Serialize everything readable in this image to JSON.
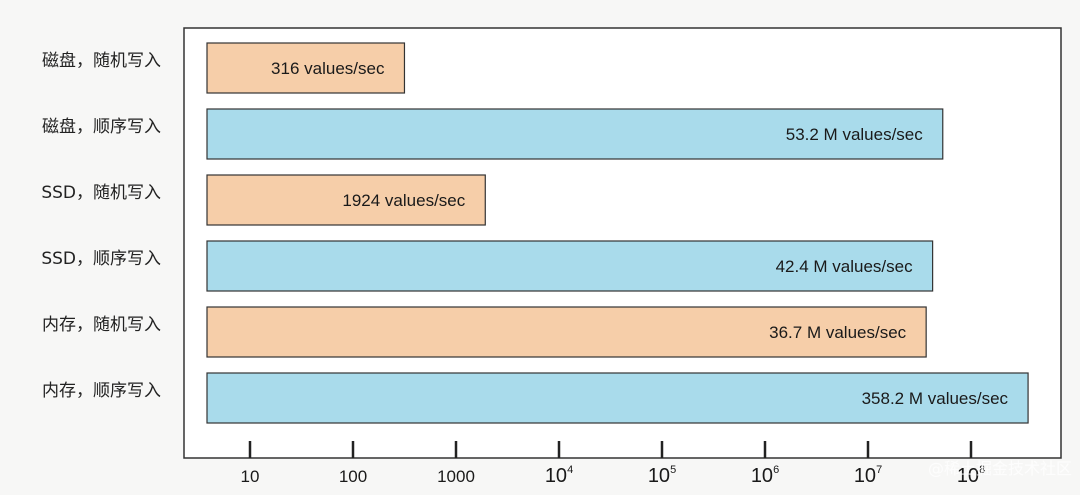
{
  "chart_data": {
    "type": "bar",
    "orientation": "horizontal",
    "x_scale": "log",
    "xlim": [
      3,
      2000000000
    ],
    "categories": [
      "磁盘，随机写入",
      "磁盘，顺序写入",
      "SSD，随机写入",
      "SSD，顺序写入",
      "内存，随机写入",
      "内存，顺序写入"
    ],
    "values": [
      316,
      53200000,
      1924,
      42400000,
      36700000,
      358200000
    ],
    "labels": [
      "316 values/sec",
      "53.2 M values/sec",
      "1924 values/sec",
      "42.4 M values/sec",
      "36.7 M values/sec",
      "358.2 M values/sec"
    ],
    "bar_colors": [
      "#f6cea9",
      "#a9dbeb",
      "#f6cea9",
      "#a9dbeb",
      "#f6cea9",
      "#a9dbeb"
    ],
    "ticks": [
      {
        "value": 10,
        "base": "10",
        "exp": ""
      },
      {
        "value": 100,
        "base": "100",
        "exp": ""
      },
      {
        "value": 1000,
        "base": "1000",
        "exp": ""
      },
      {
        "value": 10000,
        "base": "10",
        "exp": "4"
      },
      {
        "value": 100000,
        "base": "10",
        "exp": "5"
      },
      {
        "value": 1000000,
        "base": "10",
        "exp": "6"
      },
      {
        "value": 10000000,
        "base": "10",
        "exp": "7"
      },
      {
        "value": 100000000,
        "base": "10",
        "exp": "8"
      }
    ],
    "grid": false,
    "title": "",
    "xlabel": "",
    "ylabel": ""
  },
  "watermark": "@稀土掘金技术社区",
  "colors": {
    "background": "#f7f7f6",
    "plot": "#ffffff",
    "frame": "#333333",
    "bar_stroke": "#333333"
  }
}
